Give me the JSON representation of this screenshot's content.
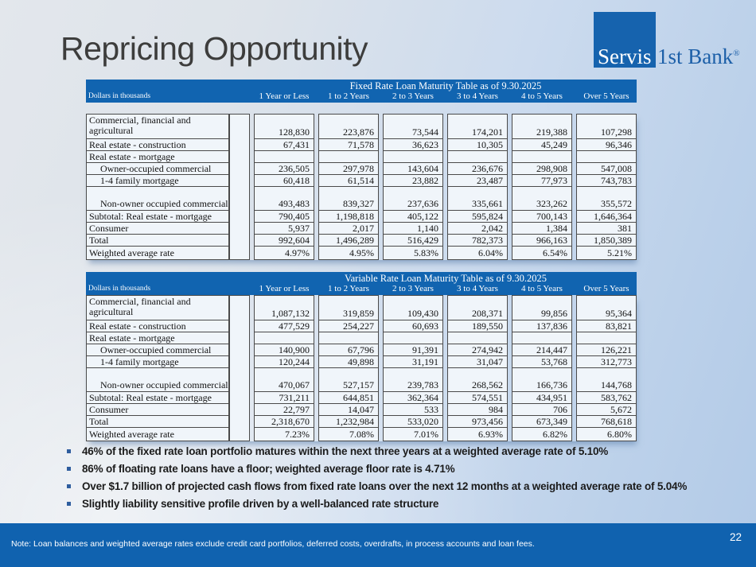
{
  "slide": {
    "title": "Repricing Opportunity",
    "page_number": "22"
  },
  "logo": {
    "square_text": "Servis",
    "right_text": "1st Bank",
    "trademark": "®",
    "square_color": "#1663ae",
    "text_color": "#1c5fa8"
  },
  "colors": {
    "table_header_blue": "#1164b0",
    "footer_blue": "#1062af",
    "cell_background": "#f0f5fa",
    "cell_border": "#4a4a4a",
    "bullet_marker_blue": "#2e5d9e"
  },
  "tables": [
    {
      "title": "Fixed Rate Loan Maturity Table as of 9.30.2025",
      "left_header": "Dollars in thousands",
      "columns": [
        "1 Year or Less",
        "1 to 2 Years",
        "2 to 3 Years",
        "3 to 4 Years",
        "4 to 5 Years",
        "Over 5 Years"
      ],
      "gap_after_header": true,
      "rows": [
        {
          "label": "Commercial, financial and agricultural",
          "indent": false,
          "size": "tall2",
          "values": [
            "128,830",
            "223,876",
            "73,544",
            "174,201",
            "219,388",
            "107,298"
          ]
        },
        {
          "label": "Real estate - construction",
          "indent": false,
          "size": "std",
          "values": [
            "67,431",
            "71,578",
            "36,623",
            "10,305",
            "45,249",
            "96,346"
          ]
        },
        {
          "label": "Real estate - mortgage",
          "indent": false,
          "size": "std",
          "values": [
            "",
            "",
            "",
            "",
            "",
            ""
          ]
        },
        {
          "label": "Owner-occupied commercial",
          "indent": true,
          "size": "std",
          "values": [
            "236,505",
            "297,978",
            "143,604",
            "236,676",
            "298,908",
            "547,008"
          ]
        },
        {
          "label": "1-4 family mortgage",
          "indent": true,
          "size": "std",
          "values": [
            "60,418",
            "61,514",
            "23,882",
            "23,487",
            "77,973",
            "743,783"
          ]
        },
        {
          "label": "Non-owner occupied commercial",
          "indent": true,
          "size": "tallb",
          "values": [
            "493,483",
            "839,327",
            "237,636",
            "335,661",
            "323,262",
            "355,572"
          ]
        },
        {
          "label": "Subtotal: Real estate - mortgage",
          "indent": false,
          "size": "std",
          "values": [
            "790,405",
            "1,198,818",
            "405,122",
            "595,824",
            "700,143",
            "1,646,364"
          ]
        },
        {
          "label": "Consumer",
          "indent": false,
          "size": "std",
          "values": [
            "5,937",
            "2,017",
            "1,140",
            "2,042",
            "1,384",
            "381"
          ]
        },
        {
          "label": "Total",
          "indent": false,
          "size": "std",
          "values": [
            "992,604",
            "1,496,289",
            "516,429",
            "782,373",
            "966,163",
            "1,850,389"
          ]
        },
        {
          "label": "Weighted average rate",
          "indent": false,
          "size": "last",
          "values": [
            "4.97%",
            "4.95%",
            "5.83%",
            "6.04%",
            "6.54%",
            "5.21%"
          ]
        }
      ]
    },
    {
      "title": "Variable Rate Loan Maturity Table as of 9.30.2025",
      "left_header": "Dollars in thousands",
      "columns": [
        "1 Year or Less",
        "1 to 2 Years",
        "2 to 3 Years",
        "3 to 4 Years",
        "4 to 5 Years",
        "Over 5 Years"
      ],
      "gap_after_header": false,
      "rows": [
        {
          "label": "Commercial, financial and agricultural",
          "indent": false,
          "size": "tall2",
          "values": [
            "1,087,132",
            "319,859",
            "109,430",
            "208,371",
            "99,856",
            "95,364"
          ]
        },
        {
          "label": "Real estate - construction",
          "indent": false,
          "size": "std",
          "values": [
            "477,529",
            "254,227",
            "60,693",
            "189,550",
            "137,836",
            "83,821"
          ]
        },
        {
          "label": "Real estate - mortgage",
          "indent": false,
          "size": "std",
          "values": [
            "",
            "",
            "",
            "",
            "",
            ""
          ]
        },
        {
          "label": "Owner-occupied commercial",
          "indent": true,
          "size": "std",
          "values": [
            "140,900",
            "67,796",
            "91,391",
            "274,942",
            "214,447",
            "126,221"
          ]
        },
        {
          "label": "1-4 family mortgage",
          "indent": true,
          "size": "std",
          "values": [
            "120,244",
            "49,898",
            "31,191",
            "31,047",
            "53,768",
            "312,773"
          ]
        },
        {
          "label": "Non-owner occupied commercial",
          "indent": true,
          "size": "tallb",
          "values": [
            "470,067",
            "527,157",
            "239,783",
            "268,562",
            "166,736",
            "144,768"
          ]
        },
        {
          "label": "Subtotal: Real estate - mortgage",
          "indent": false,
          "size": "std",
          "values": [
            "731,211",
            "644,851",
            "362,364",
            "574,551",
            "434,951",
            "583,762"
          ]
        },
        {
          "label": "Consumer",
          "indent": false,
          "size": "std",
          "values": [
            "22,797",
            "14,047",
            "533",
            "984",
            "706",
            "5,672"
          ]
        },
        {
          "label": "Total",
          "indent": false,
          "size": "std",
          "values": [
            "2,318,670",
            "1,232,984",
            "533,020",
            "973,456",
            "673,349",
            "768,618"
          ]
        },
        {
          "label": "Weighted average rate",
          "indent": false,
          "size": "last",
          "values": [
            "7.23%",
            "7.08%",
            "7.01%",
            "6.93%",
            "6.82%",
            "6.80%"
          ]
        }
      ]
    }
  ],
  "bullets": [
    "46% of the fixed rate loan portfolio matures within the next three years at a weighted average rate of 5.10%",
    "86% of floating rate loans have a floor; weighted average floor rate is 4.71%",
    "Over $1.7 billion of projected cash flows from fixed rate loans over the next 12 months at a weighted average rate of 5.04%",
    "Slightly liability sensitive profile driven by a well-balanced rate structure"
  ],
  "footer": {
    "note": "Note:  Loan balances and weighted average rates exclude credit card portfolios, deferred costs, overdrafts, in process accounts and loan fees."
  }
}
